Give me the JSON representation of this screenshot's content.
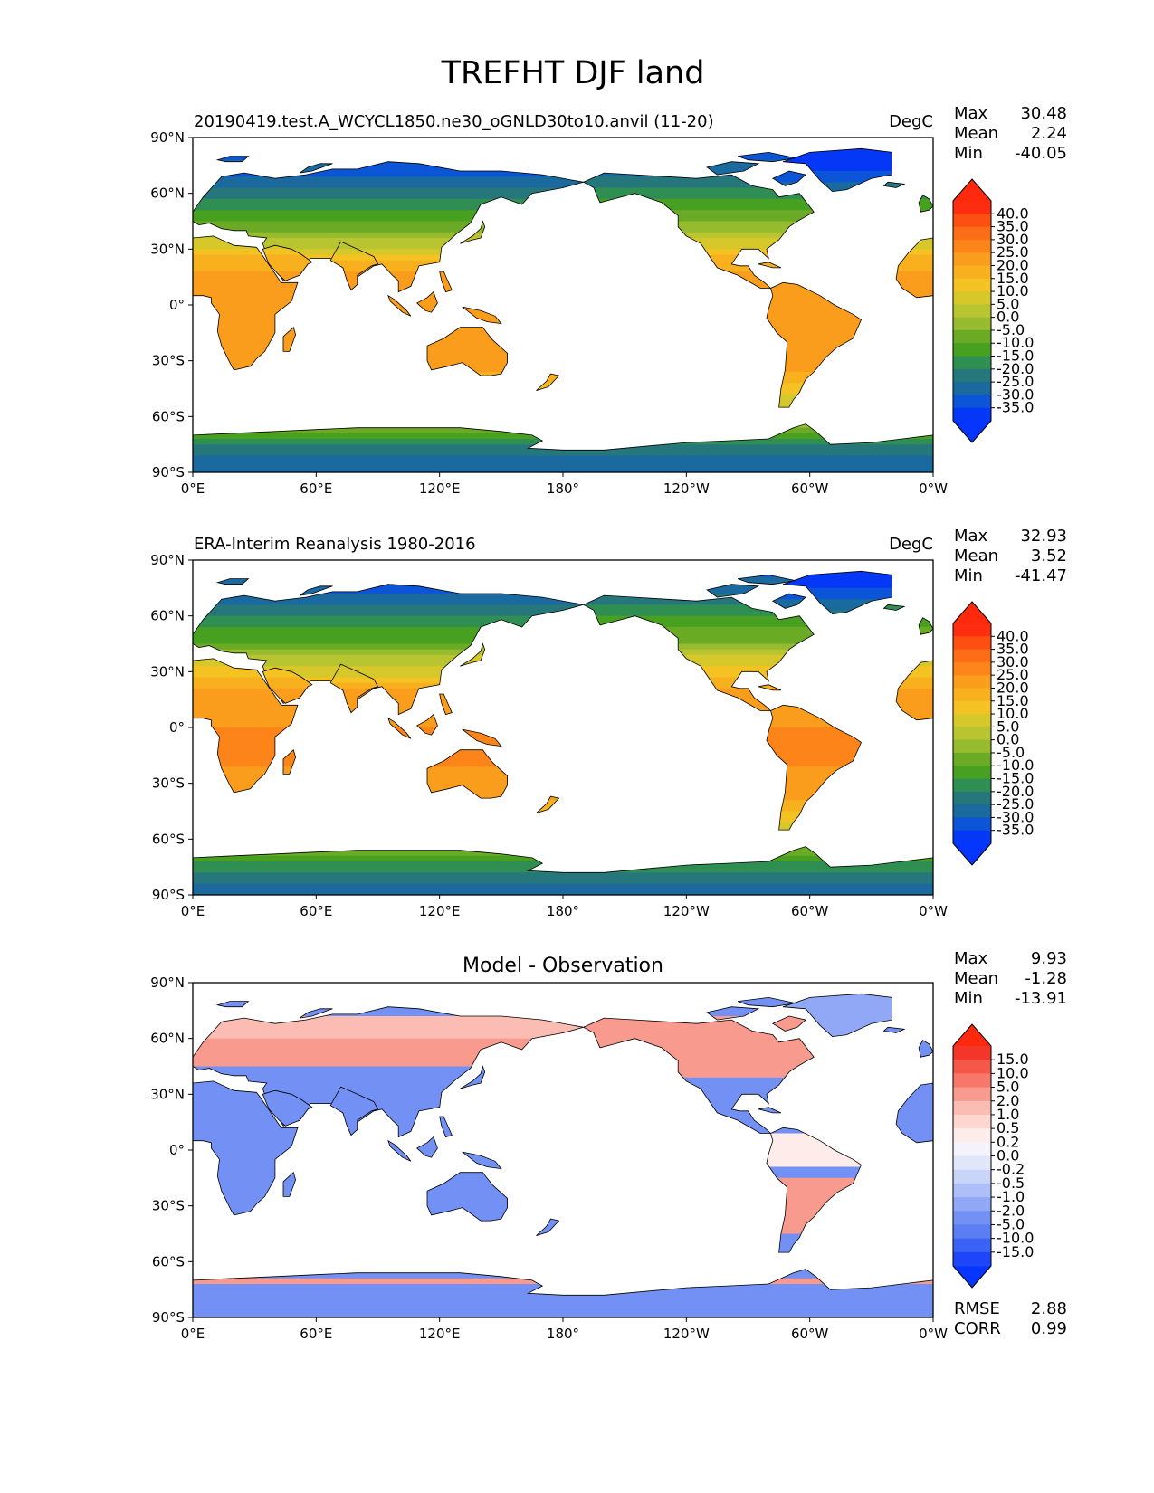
{
  "suptitle": "TREFHT DJF land",
  "chart_data": [
    {
      "type": "heatmap",
      "title_left": "20190419.test.A_WCYCL1850.ne30_oGNLD30to10.anvil (11-20)",
      "title_center": "",
      "units": "DegC",
      "stats": [
        {
          "label": "Max",
          "value": "30.48"
        },
        {
          "label": "Mean",
          "value": "2.24"
        },
        {
          "label": "Min",
          "value": "-40.05"
        }
      ],
      "colorbar": {
        "ticks": [
          "40.0",
          "35.0",
          "30.0",
          "25.0",
          "20.0",
          "15.0",
          "10.0",
          "5.0",
          "0.0",
          "-5.0",
          "-10.0",
          "-15.0",
          "-20.0",
          "-25.0",
          "-30.0",
          "-35.0"
        ],
        "colors": [
          "#fe2d10",
          "#fe4f12",
          "#fd6c16",
          "#fc8419",
          "#fa9c1c",
          "#f9b01f",
          "#f4c323",
          "#d6c72a",
          "#b9c431",
          "#96bb2e",
          "#6aaa25",
          "#48a020",
          "#2f8f52",
          "#26777c",
          "#1a6aa0",
          "#0b55d6",
          "#0537f6"
        ],
        "over_color": "#ff2a0e",
        "under_color": "#0535ff"
      },
      "xticks": [
        "0°E",
        "60°E",
        "120°E",
        "180°",
        "120°W",
        "60°W",
        "0°W"
      ],
      "yticks": [
        "90°N",
        "60°N",
        "30°N",
        "0°",
        "30°S",
        "60°S",
        "90°S"
      ],
      "map_theme": "absolute"
    },
    {
      "type": "heatmap",
      "title_left": "ERA-Interim Reanalysis 1980-2016",
      "title_center": "",
      "units": "DegC",
      "stats": [
        {
          "label": "Max",
          "value": "32.93"
        },
        {
          "label": "Mean",
          "value": "3.52"
        },
        {
          "label": "Min",
          "value": "-41.47"
        }
      ],
      "colorbar": {
        "ticks": [
          "40.0",
          "35.0",
          "30.0",
          "25.0",
          "20.0",
          "15.0",
          "10.0",
          "5.0",
          "0.0",
          "-5.0",
          "-10.0",
          "-15.0",
          "-20.0",
          "-25.0",
          "-30.0",
          "-35.0"
        ],
        "colors": [
          "#fe2d10",
          "#fe4f12",
          "#fd6c16",
          "#fc8419",
          "#fa9c1c",
          "#f9b01f",
          "#f4c323",
          "#d6c72a",
          "#b9c431",
          "#96bb2e",
          "#6aaa25",
          "#48a020",
          "#2f8f52",
          "#26777c",
          "#1a6aa0",
          "#0b55d6",
          "#0537f6"
        ],
        "over_color": "#ff2a0e",
        "under_color": "#0535ff"
      },
      "xticks": [
        "0°E",
        "60°E",
        "120°E",
        "180°",
        "120°W",
        "60°W",
        "0°W"
      ],
      "yticks": [
        "90°N",
        "60°N",
        "30°N",
        "0°",
        "30°S",
        "60°S",
        "90°S"
      ],
      "map_theme": "absolute_obs"
    },
    {
      "type": "heatmap",
      "title_left": "",
      "title_center": "Model - Observation",
      "units": "",
      "stats": [
        {
          "label": "Max",
          "value": "9.93"
        },
        {
          "label": "Mean",
          "value": "-1.28"
        },
        {
          "label": "Min",
          "value": "-13.91"
        }
      ],
      "colorbar": {
        "ticks": [
          "15.0",
          "10.0",
          "5.0",
          "2.0",
          "1.0",
          "0.5",
          "0.2",
          "0.0",
          "-0.2",
          "-0.5",
          "-1.0",
          "-2.0",
          "-5.0",
          "-10.0",
          "-15.0"
        ],
        "colors": [
          "#f4352a",
          "#f55848",
          "#f7786a",
          "#f99a8e",
          "#fbbcb3",
          "#fdd6d0",
          "#feeceb",
          "#f4f3fb",
          "#e1e6fb",
          "#c9d4f9",
          "#aebff7",
          "#91a8f6",
          "#7391f4",
          "#5b7ff3",
          "#3b62f6",
          "#1f45fb"
        ],
        "over_color": "#ff2a0e",
        "under_color": "#0535ff"
      },
      "xticks": [
        "0°E",
        "60°E",
        "120°E",
        "180°",
        "120°W",
        "60°W",
        "0°W"
      ],
      "yticks": [
        "90°N",
        "60°N",
        "30°N",
        "0°",
        "30°S",
        "60°S",
        "90°S"
      ],
      "map_theme": "diff",
      "metrics": [
        {
          "label": "RMSE",
          "value": "2.88"
        },
        {
          "label": "CORR",
          "value": "0.99"
        }
      ]
    }
  ]
}
